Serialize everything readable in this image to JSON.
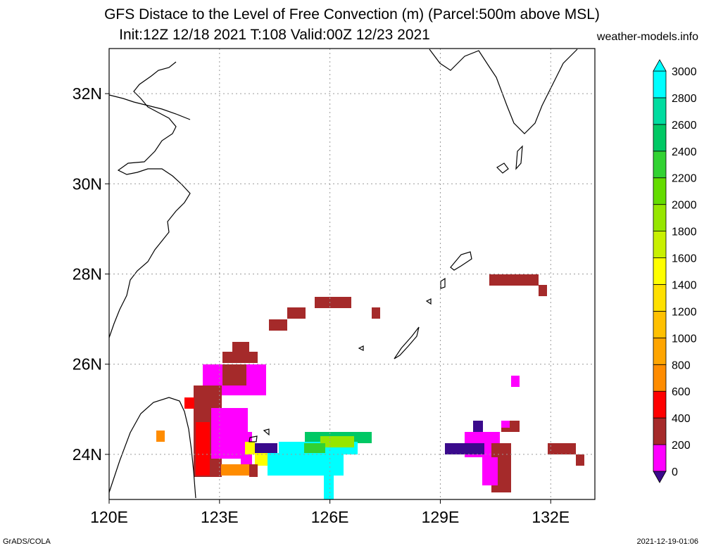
{
  "title": {
    "line1": "GFS Distace to the Level of Free Convection (m) (Parcel:500m above MSL)",
    "line2": "Init:12Z 12/18 2021 T:108 Valid:00Z 12/23 2021"
  },
  "credit": "weather-models.info",
  "footer": {
    "software": "GrADS/COLA",
    "timestamp": "2021-12-19-01:06"
  },
  "map": {
    "lon_range": [
      120,
      133.2
    ],
    "lat_range": [
      23,
      33
    ],
    "lon_labels": [
      "120E",
      "123E",
      "126E",
      "129E",
      "132E"
    ],
    "lat_labels": [
      "24N",
      "26N",
      "28N",
      "30N",
      "32N"
    ],
    "grid": true
  },
  "colorbar": {
    "labels": [
      "0",
      "200",
      "400",
      "600",
      "800",
      "1000",
      "1200",
      "1400",
      "1600",
      "1800",
      "2000",
      "2200",
      "2400",
      "2600",
      "2800",
      "3000"
    ],
    "colors": [
      "#3a0a8c",
      "#ff00ff",
      "#a52a2a",
      "#ff0000",
      "#ff8c00",
      "#ffa500",
      "#ffc000",
      "#ffe000",
      "#ffff00",
      "#c8f000",
      "#96e600",
      "#64dc00",
      "#32d232",
      "#00c864",
      "#00dca0",
      "#00ffff"
    ]
  }
}
